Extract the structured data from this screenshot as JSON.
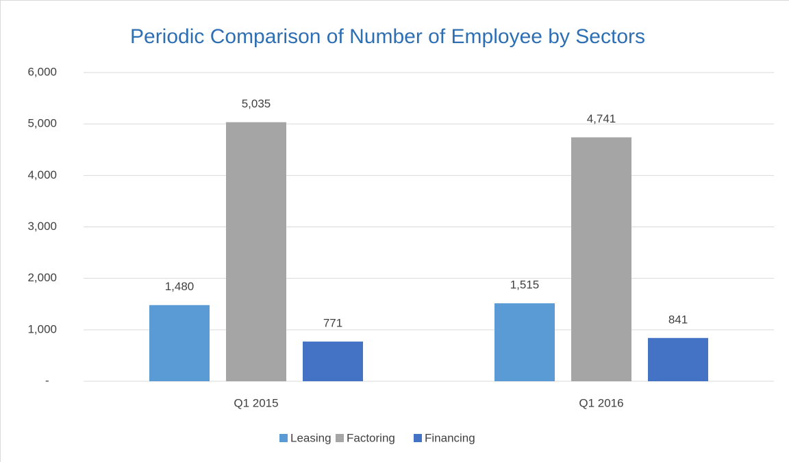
{
  "chart_data": {
    "type": "bar",
    "title": "Periodic Comparison of Number of Employee by Sectors",
    "categories": [
      "Q1 2015",
      "Q1 2016"
    ],
    "series": [
      {
        "name": "Leasing",
        "color": "#5b9bd5",
        "values": [
          1480,
          1515
        ],
        "value_labels": [
          "1,480",
          "1,515"
        ]
      },
      {
        "name": "Factoring",
        "color": "#a5a5a5",
        "values": [
          5035,
          4741
        ],
        "value_labels": [
          "5,035",
          "4,741"
        ]
      },
      {
        "name": "Financing",
        "color": "#4472c4",
        "values": [
          771,
          841
        ],
        "value_labels": [
          "771",
          "841"
        ]
      }
    ],
    "ylim": [
      0,
      6000
    ],
    "yticks": [
      {
        "value": 0,
        "label": "-"
      },
      {
        "value": 1000,
        "label": "1,000"
      },
      {
        "value": 2000,
        "label": "2,000"
      },
      {
        "value": 3000,
        "label": "3,000"
      },
      {
        "value": 4000,
        "label": "4,000"
      },
      {
        "value": 5000,
        "label": "5,000"
      },
      {
        "value": 6000,
        "label": "6,000"
      }
    ],
    "grid": true,
    "legend": "bottom"
  }
}
